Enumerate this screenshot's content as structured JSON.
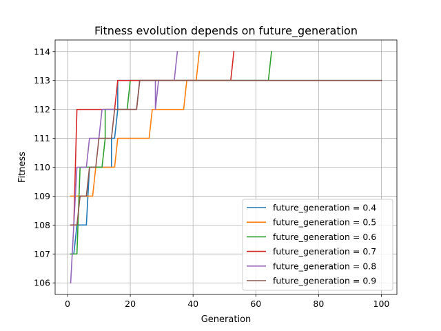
{
  "chart_data": {
    "type": "line",
    "title": "Fitness evolution depends on future_generation",
    "xlabel": "Generation",
    "ylabel": "Fitness",
    "xlim": [
      -3.95,
      104.95
    ],
    "ylim": [
      105.6,
      114.4
    ],
    "xticks": [
      0,
      20,
      40,
      60,
      80,
      100
    ],
    "yticks": [
      106,
      107,
      108,
      109,
      110,
      111,
      112,
      113,
      114
    ],
    "grid": true,
    "legend_position": "lower right",
    "series": [
      {
        "name": "future_generation = 0.4",
        "color": "#1f77b4",
        "points": [
          [
            1,
            107
          ],
          [
            2,
            107
          ],
          [
            3,
            108
          ],
          [
            5,
            108
          ],
          [
            6,
            108
          ],
          [
            7,
            110
          ],
          [
            14,
            110
          ],
          [
            14,
            111
          ],
          [
            15,
            111
          ],
          [
            16,
            112
          ],
          [
            16,
            113
          ],
          [
            100,
            113
          ]
        ]
      },
      {
        "name": "future_generation = 0.5",
        "color": "#ff7f0e",
        "points": [
          [
            1,
            109
          ],
          [
            4,
            109
          ],
          [
            5,
            109
          ],
          [
            8,
            109
          ],
          [
            9,
            110
          ],
          [
            15,
            110
          ],
          [
            16,
            111
          ],
          [
            26,
            111
          ],
          [
            27,
            112
          ],
          [
            37,
            112
          ],
          [
            38,
            113
          ],
          [
            41,
            113
          ],
          [
            42,
            114
          ]
        ]
      },
      {
        "name": "future_generation = 0.6",
        "color": "#2ca02c",
        "points": [
          [
            1,
            107
          ],
          [
            2,
            107
          ],
          [
            3,
            107
          ],
          [
            4,
            110
          ],
          [
            11,
            110
          ],
          [
            12,
            111
          ],
          [
            12,
            112
          ],
          [
            13,
            112
          ],
          [
            19,
            112
          ],
          [
            20,
            113
          ],
          [
            64,
            113
          ],
          [
            65,
            114
          ]
        ]
      },
      {
        "name": "future_generation = 0.7",
        "color": "#d62728",
        "points": [
          [
            1,
            108
          ],
          [
            2,
            108
          ],
          [
            3,
            112
          ],
          [
            15,
            112
          ],
          [
            16,
            113
          ],
          [
            52,
            113
          ],
          [
            53,
            114
          ]
        ]
      },
      {
        "name": "future_generation = 0.8",
        "color": "#9467bd",
        "points": [
          [
            1,
            106
          ],
          [
            2,
            108
          ],
          [
            3,
            110
          ],
          [
            6,
            110
          ],
          [
            7,
            111
          ],
          [
            10,
            111
          ],
          [
            11,
            112
          ],
          [
            22,
            112
          ],
          [
            23,
            113
          ],
          [
            28,
            113
          ],
          [
            28,
            112
          ],
          [
            29,
            113
          ],
          [
            34,
            113
          ],
          [
            35,
            114
          ]
        ]
      },
      {
        "name": "future_generation = 0.9",
        "color": "#8c564b",
        "points": [
          [
            1,
            108
          ],
          [
            3,
            108
          ],
          [
            4,
            109
          ],
          [
            6,
            109
          ],
          [
            7,
            110
          ],
          [
            9,
            110
          ],
          [
            10,
            111
          ],
          [
            14,
            111
          ],
          [
            15,
            112
          ],
          [
            22,
            112
          ],
          [
            23,
            113
          ],
          [
            100,
            113
          ]
        ]
      }
    ]
  }
}
